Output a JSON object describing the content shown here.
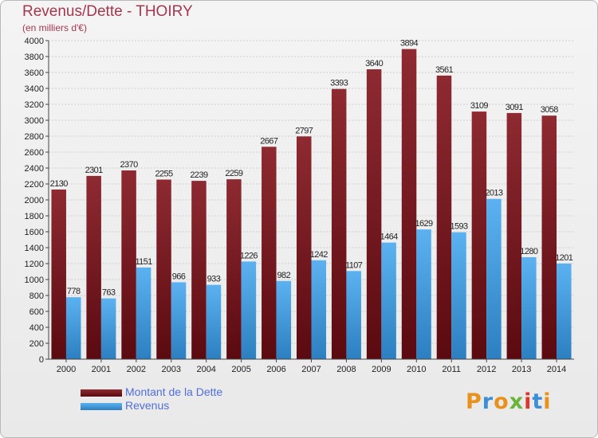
{
  "header": {
    "title": "Revenus/Dette - THOIRY",
    "subtitle": "(en milliers d'€)"
  },
  "legend": {
    "items": [
      {
        "label": "Montant de la Dette",
        "color": "#6e1218"
      },
      {
        "label": "Revenus",
        "color": "#4aa3e6"
      }
    ]
  },
  "logo": {
    "text": "Proxiti",
    "letters": [
      "P",
      "r",
      "o",
      "x",
      "i",
      "t",
      "i"
    ],
    "colors": [
      "#e8911b",
      "#3b8fd4",
      "#e8911b",
      "#6bb43a",
      "#d9382f",
      "#3b8fd4",
      "#e8911b"
    ]
  },
  "chart_data": {
    "type": "bar",
    "categories": [
      "2000",
      "2001",
      "2002",
      "2003",
      "2004",
      "2005",
      "2006",
      "2007",
      "2008",
      "2009",
      "2010",
      "2011",
      "2012",
      "2013",
      "2014"
    ],
    "series": [
      {
        "name": "Montant de la Dette",
        "values": [
          2130,
          2301,
          2370,
          2255,
          2239,
          2259,
          2667,
          2797,
          3393,
          3640,
          3894,
          3561,
          3109,
          3091,
          3058
        ],
        "color": "#7a1c22"
      },
      {
        "name": "Revenus",
        "values": [
          778,
          763,
          1151,
          966,
          933,
          1226,
          982,
          1242,
          1107,
          1464,
          1629,
          1593,
          2013,
          1280,
          1201
        ],
        "color": "#4aa3e6"
      }
    ],
    "yticks": [
      0,
      200,
      400,
      600,
      800,
      1000,
      1200,
      1400,
      1600,
      1800,
      2000,
      2200,
      2400,
      2600,
      2800,
      3000,
      3200,
      3400,
      3600,
      3800,
      4000
    ],
    "ylim": [
      0,
      4000
    ],
    "grid": true
  }
}
